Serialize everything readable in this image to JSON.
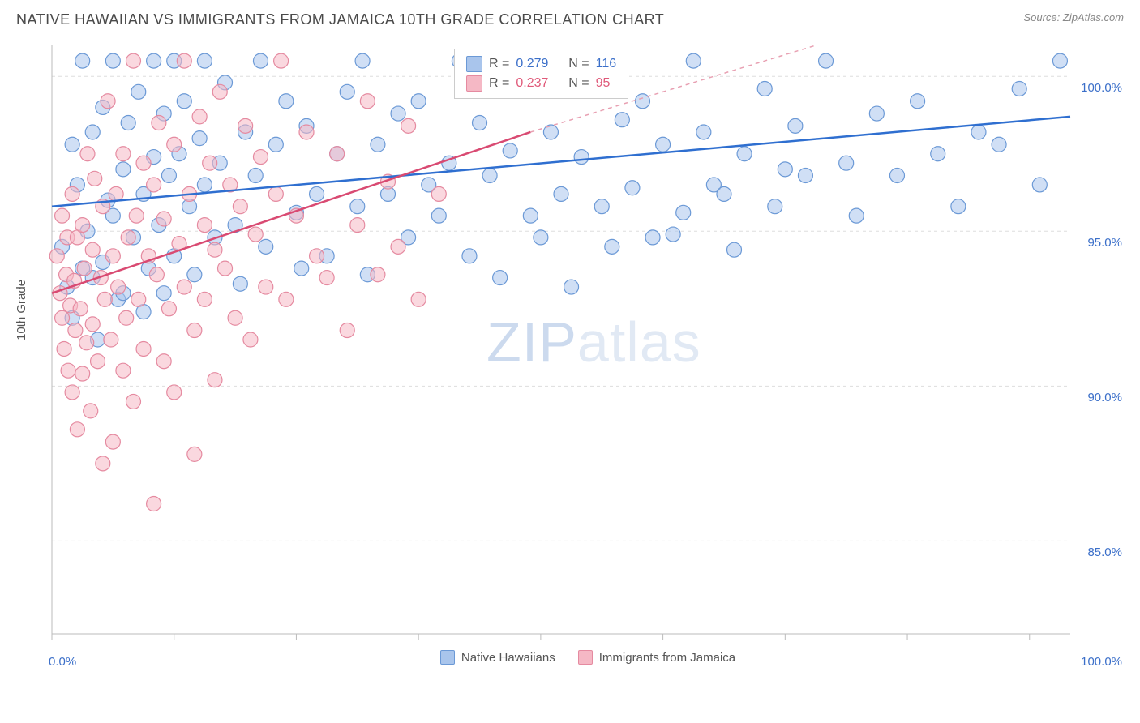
{
  "title": "NATIVE HAWAIIAN VS IMMIGRANTS FROM JAMAICA 10TH GRADE CORRELATION CHART",
  "source": "Source: ZipAtlas.com",
  "ylabel": "10th Grade",
  "watermark_a": "ZIP",
  "watermark_b": "atlas",
  "chart": {
    "type": "scatter",
    "xlim": [
      0,
      100
    ],
    "ylim": [
      82,
      101
    ],
    "xtick_positions": [
      0,
      12,
      24,
      36,
      48,
      60,
      72,
      84,
      96
    ],
    "ytick_positions": [
      85,
      90,
      95,
      100
    ],
    "ytick_labels": [
      "85.0%",
      "90.0%",
      "95.0%",
      "100.0%"
    ],
    "xaxis_end_labels": [
      "0.0%",
      "100.0%"
    ],
    "background_color": "#ffffff",
    "grid_color": "#dddddd",
    "axis_color": "#bbbbbb",
    "series": [
      {
        "name": "Native Hawaiians",
        "color_fill": "#a9c5ec",
        "color_stroke": "#6b99d6",
        "marker_radius": 9,
        "fill_opacity": 0.55,
        "R": 0.279,
        "N": 116,
        "trend": {
          "x1": 0,
          "y1": 95.8,
          "x2": 100,
          "y2": 98.7,
          "color": "#2f6fd0",
          "width": 2.5,
          "dash": "none"
        },
        "points": [
          [
            1,
            94.5
          ],
          [
            1.5,
            93.2
          ],
          [
            2,
            97.8
          ],
          [
            2,
            92.2
          ],
          [
            2.5,
            96.5
          ],
          [
            3,
            93.8
          ],
          [
            3,
            100.5
          ],
          [
            3.5,
            95
          ],
          [
            4,
            98.2
          ],
          [
            4,
            93.5
          ],
          [
            4.5,
            91.5
          ],
          [
            5,
            99
          ],
          [
            5,
            94
          ],
          [
            5.5,
            96
          ],
          [
            6,
            100.5
          ],
          [
            6,
            95.5
          ],
          [
            6.5,
            92.8
          ],
          [
            7,
            97
          ],
          [
            7,
            93
          ],
          [
            7.5,
            98.5
          ],
          [
            8,
            94.8
          ],
          [
            8.5,
            99.5
          ],
          [
            9,
            96.2
          ],
          [
            9,
            92.4
          ],
          [
            9.5,
            93.8
          ],
          [
            10,
            100.5
          ],
          [
            10,
            97.4
          ],
          [
            10.5,
            95.2
          ],
          [
            11,
            98.8
          ],
          [
            11,
            93
          ],
          [
            11.5,
            96.8
          ],
          [
            12,
            100.5
          ],
          [
            12,
            94.2
          ],
          [
            12.5,
            97.5
          ],
          [
            13,
            99.2
          ],
          [
            13.5,
            95.8
          ],
          [
            14,
            93.6
          ],
          [
            14.5,
            98
          ],
          [
            15,
            96.5
          ],
          [
            15,
            100.5
          ],
          [
            16,
            94.8
          ],
          [
            16.5,
            97.2
          ],
          [
            17,
            99.8
          ],
          [
            18,
            95.2
          ],
          [
            18.5,
            93.3
          ],
          [
            19,
            98.2
          ],
          [
            20,
            96.8
          ],
          [
            20.5,
            100.5
          ],
          [
            21,
            94.5
          ],
          [
            22,
            97.8
          ],
          [
            23,
            99.2
          ],
          [
            24,
            95.6
          ],
          [
            24.5,
            93.8
          ],
          [
            25,
            98.4
          ],
          [
            26,
            96.2
          ],
          [
            27,
            94.2
          ],
          [
            28,
            97.5
          ],
          [
            29,
            99.5
          ],
          [
            30,
            95.8
          ],
          [
            30.5,
            100.5
          ],
          [
            31,
            93.6
          ],
          [
            32,
            97.8
          ],
          [
            33,
            96.2
          ],
          [
            34,
            98.8
          ],
          [
            35,
            94.8
          ],
          [
            36,
            99.2
          ],
          [
            37,
            96.5
          ],
          [
            38,
            95.5
          ],
          [
            39,
            97.2
          ],
          [
            40,
            100.5
          ],
          [
            41,
            94.2
          ],
          [
            42,
            98.5
          ],
          [
            43,
            96.8
          ],
          [
            44,
            93.5
          ],
          [
            45,
            97.6
          ],
          [
            46,
            99.8
          ],
          [
            47,
            95.5
          ],
          [
            48,
            94.8
          ],
          [
            49,
            98.2
          ],
          [
            50,
            96.2
          ],
          [
            51,
            93.2
          ],
          [
            52,
            97.4
          ],
          [
            53,
            100.5
          ],
          [
            54,
            95.8
          ],
          [
            55,
            94.5
          ],
          [
            56,
            98.6
          ],
          [
            57,
            96.4
          ],
          [
            58,
            99.2
          ],
          [
            59,
            94.8
          ],
          [
            60,
            97.8
          ],
          [
            62,
            95.6
          ],
          [
            63,
            100.5
          ],
          [
            64,
            98.2
          ],
          [
            65,
            96.5
          ],
          [
            67,
            94.4
          ],
          [
            68,
            97.5
          ],
          [
            70,
            99.6
          ],
          [
            71,
            95.8
          ],
          [
            73,
            98.4
          ],
          [
            74,
            96.8
          ],
          [
            76,
            100.5
          ],
          [
            78,
            97.2
          ],
          [
            79,
            95.5
          ],
          [
            81,
            98.8
          ],
          [
            83,
            96.8
          ],
          [
            85,
            99.2
          ],
          [
            87,
            97.5
          ],
          [
            89,
            95.8
          ],
          [
            91,
            98.2
          ],
          [
            93,
            97.8
          ],
          [
            95,
            99.6
          ],
          [
            97,
            96.5
          ],
          [
            99,
            100.5
          ],
          [
            72,
            97.0
          ],
          [
            66,
            96.2
          ],
          [
            61,
            94.9
          ]
        ]
      },
      {
        "name": "Immigrants from Jamaica",
        "color_fill": "#f5b8c5",
        "color_stroke": "#e58aa0",
        "marker_radius": 9,
        "fill_opacity": 0.55,
        "R": 0.237,
        "N": 95,
        "trend_solid": {
          "x1": 0,
          "y1": 93.0,
          "x2": 47,
          "y2": 98.2,
          "color": "#d94a72",
          "width": 2.5
        },
        "trend_dashed": {
          "x1": 47,
          "y1": 98.2,
          "x2": 75,
          "y2": 101,
          "color": "#e8a0b2",
          "width": 1.5,
          "dash": "5,5"
        },
        "points": [
          [
            0.5,
            94.2
          ],
          [
            0.8,
            93.0
          ],
          [
            1,
            92.2
          ],
          [
            1,
            95.5
          ],
          [
            1.2,
            91.2
          ],
          [
            1.4,
            93.6
          ],
          [
            1.5,
            94.8
          ],
          [
            1.6,
            90.5
          ],
          [
            1.8,
            92.6
          ],
          [
            2,
            96.2
          ],
          [
            2,
            89.8
          ],
          [
            2.2,
            93.4
          ],
          [
            2.3,
            91.8
          ],
          [
            2.5,
            94.8
          ],
          [
            2.5,
            88.6
          ],
          [
            2.8,
            92.5
          ],
          [
            3,
            95.2
          ],
          [
            3,
            90.4
          ],
          [
            3.2,
            93.8
          ],
          [
            3.4,
            91.4
          ],
          [
            3.5,
            97.5
          ],
          [
            3.8,
            89.2
          ],
          [
            4,
            94.4
          ],
          [
            4,
            92.0
          ],
          [
            4.2,
            96.7
          ],
          [
            4.5,
            90.8
          ],
          [
            4.8,
            93.5
          ],
          [
            5,
            87.5
          ],
          [
            5,
            95.8
          ],
          [
            5.2,
            92.8
          ],
          [
            5.5,
            99.2
          ],
          [
            5.8,
            91.5
          ],
          [
            6,
            94.2
          ],
          [
            6,
            88.2
          ],
          [
            6.3,
            96.2
          ],
          [
            6.5,
            93.2
          ],
          [
            7,
            90.5
          ],
          [
            7,
            97.5
          ],
          [
            7.3,
            92.2
          ],
          [
            7.5,
            94.8
          ],
          [
            8,
            89.5
          ],
          [
            8,
            100.5
          ],
          [
            8.3,
            95.5
          ],
          [
            8.5,
            92.8
          ],
          [
            9,
            97.2
          ],
          [
            9,
            91.2
          ],
          [
            9.5,
            94.2
          ],
          [
            10,
            96.5
          ],
          [
            10,
            86.2
          ],
          [
            10.3,
            93.6
          ],
          [
            10.5,
            98.5
          ],
          [
            11,
            90.8
          ],
          [
            11,
            95.4
          ],
          [
            11.5,
            92.5
          ],
          [
            12,
            97.8
          ],
          [
            12,
            89.8
          ],
          [
            12.5,
            94.6
          ],
          [
            13,
            100.5
          ],
          [
            13,
            93.2
          ],
          [
            13.5,
            96.2
          ],
          [
            14,
            91.8
          ],
          [
            14,
            87.8
          ],
          [
            14.5,
            98.7
          ],
          [
            15,
            95.2
          ],
          [
            15,
            92.8
          ],
          [
            15.5,
            97.2
          ],
          [
            16,
            94.4
          ],
          [
            16,
            90.2
          ],
          [
            16.5,
            99.5
          ],
          [
            17,
            93.8
          ],
          [
            17.5,
            96.5
          ],
          [
            18,
            92.2
          ],
          [
            18.5,
            95.8
          ],
          [
            19,
            98.4
          ],
          [
            19.5,
            91.5
          ],
          [
            20,
            94.9
          ],
          [
            20.5,
            97.4
          ],
          [
            21,
            93.2
          ],
          [
            22,
            96.2
          ],
          [
            22.5,
            100.5
          ],
          [
            23,
            92.8
          ],
          [
            24,
            95.5
          ],
          [
            25,
            98.2
          ],
          [
            26,
            94.2
          ],
          [
            27,
            93.5
          ],
          [
            28,
            97.5
          ],
          [
            29,
            91.8
          ],
          [
            30,
            95.2
          ],
          [
            31,
            99.2
          ],
          [
            32,
            93.6
          ],
          [
            33,
            96.6
          ],
          [
            34,
            94.5
          ],
          [
            35,
            98.4
          ],
          [
            36,
            92.8
          ],
          [
            38,
            96.2
          ]
        ]
      }
    ]
  },
  "legend": {
    "series1_label": "Native Hawaiians",
    "series2_label": "Immigrants from Jamaica"
  },
  "statbox": {
    "r_label": "R =",
    "n_label": "N =",
    "s1_r": "0.279",
    "s1_n": "116",
    "s2_r": "0.237",
    "s2_n": "95"
  }
}
